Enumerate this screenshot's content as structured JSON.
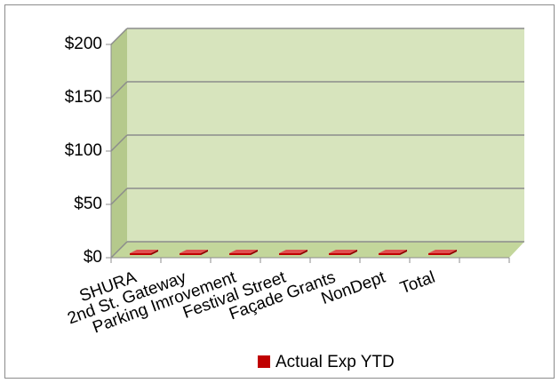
{
  "chart_data": {
    "type": "bar",
    "categories": [
      "SHURA",
      "2nd St. Gateway",
      "Parking Imrovement",
      "Festival Street",
      "Façade Grants",
      "NonDept",
      "Total",
      null
    ],
    "series": [
      {
        "name": "Actual Exp YTD",
        "color": "#c00000",
        "values": [
          0,
          0,
          0,
          0,
          0,
          0,
          0,
          null
        ]
      }
    ],
    "ylim": [
      0,
      200
    ],
    "yticks": [
      {
        "value": 0,
        "label": "$0"
      },
      {
        "value": 50,
        "label": "$50"
      },
      {
        "value": 100,
        "label": "$100"
      },
      {
        "value": 150,
        "label": "$150"
      },
      {
        "value": 200,
        "label": "$200"
      }
    ],
    "grid": true,
    "legend": "bottom"
  }
}
